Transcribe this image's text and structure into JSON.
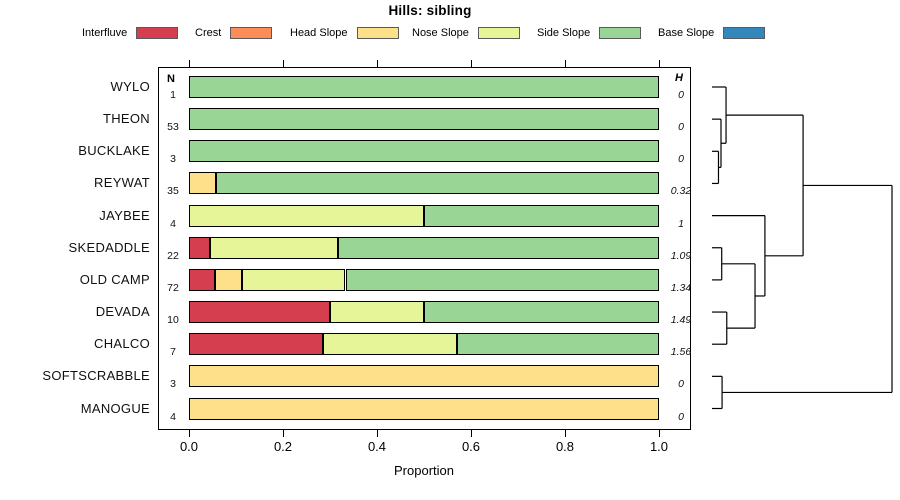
{
  "title": "Hills: sibling",
  "legend": {
    "items": [
      {
        "label": "Interfluve",
        "color": "#D53E4F"
      },
      {
        "label": "Crest",
        "color": "#FC8D59"
      },
      {
        "label": "Head Slope",
        "color": "#FEE08B"
      },
      {
        "label": "Nose Slope",
        "color": "#E6F598"
      },
      {
        "label": "Side Slope",
        "color": "#99D594"
      },
      {
        "label": "Base Slope",
        "color": "#3288BD"
      }
    ]
  },
  "columns": {
    "n_header": "N",
    "h_header": "H"
  },
  "chart_data": {
    "type": "bar",
    "stacked": true,
    "orientation": "horizontal",
    "title": "Hills: sibling",
    "xlabel": "Proportion",
    "xlim": [
      0,
      1
    ],
    "xticks": [
      "0.0",
      "0.2",
      "0.4",
      "0.6",
      "0.8",
      "1.0"
    ],
    "legend_position": "top",
    "classes": {
      "Interfluve": "#D53E4F",
      "Crest": "#FC8D59",
      "Head Slope": "#FEE08B",
      "Nose Slope": "#E6F598",
      "Side Slope": "#99D594",
      "Base Slope": "#3288BD"
    },
    "rows": [
      {
        "label": "WYLO",
        "n": "1",
        "h": "0",
        "segments": [
          {
            "class": "Side Slope",
            "value": 1.0
          }
        ]
      },
      {
        "label": "THEON",
        "n": "53",
        "h": "0",
        "segments": [
          {
            "class": "Side Slope",
            "value": 1.0
          }
        ]
      },
      {
        "label": "BUCKLAKE",
        "n": "3",
        "h": "0",
        "segments": [
          {
            "class": "Side Slope",
            "value": 1.0
          }
        ]
      },
      {
        "label": "REYWAT",
        "n": "35",
        "h": "0.32",
        "segments": [
          {
            "class": "Head Slope",
            "value": 0.057
          },
          {
            "class": "Side Slope",
            "value": 0.943
          }
        ]
      },
      {
        "label": "JAYBEE",
        "n": "4",
        "h": "1",
        "segments": [
          {
            "class": "Nose Slope",
            "value": 0.5
          },
          {
            "class": "Side Slope",
            "value": 0.5
          }
        ]
      },
      {
        "label": "SKEDADDLE",
        "n": "22",
        "h": "1.09",
        "segments": [
          {
            "class": "Interfluve",
            "value": 0.045
          },
          {
            "class": "Nose Slope",
            "value": 0.273
          },
          {
            "class": "Side Slope",
            "value": 0.682
          }
        ]
      },
      {
        "label": "OLD CAMP",
        "n": "72",
        "h": "1.34",
        "segments": [
          {
            "class": "Interfluve",
            "value": 0.056
          },
          {
            "class": "Head Slope",
            "value": 0.056
          },
          {
            "class": "Nose Slope",
            "value": 0.221
          },
          {
            "class": "Side Slope",
            "value": 0.667
          }
        ]
      },
      {
        "label": "DEVADA",
        "n": "10",
        "h": "1.49",
        "segments": [
          {
            "class": "Interfluve",
            "value": 0.3
          },
          {
            "class": "Nose Slope",
            "value": 0.2
          },
          {
            "class": "Side Slope",
            "value": 0.5
          }
        ]
      },
      {
        "label": "CHALCO",
        "n": "7",
        "h": "1.56",
        "segments": [
          {
            "class": "Interfluve",
            "value": 0.286
          },
          {
            "class": "Nose Slope",
            "value": 0.285
          },
          {
            "class": "Side Slope",
            "value": 0.429
          }
        ]
      },
      {
        "label": "SOFTSCRABBLE",
        "n": "3",
        "h": "0",
        "segments": [
          {
            "class": "Head Slope",
            "value": 1.0
          }
        ]
      },
      {
        "label": "MANOGUE",
        "n": "4",
        "h": "0",
        "segments": [
          {
            "class": "Head Slope",
            "value": 1.0
          }
        ]
      }
    ],
    "dendrogram": {
      "merges": [
        {
          "id": "m1",
          "children": [
            "BUCKLAKE",
            "REYWAT"
          ],
          "height": 0.036
        },
        {
          "id": "m2",
          "children": [
            "THEON",
            "m1"
          ],
          "height": 0.05
        },
        {
          "id": "m3",
          "children": [
            "WYLO",
            "m2"
          ],
          "height": 0.078
        },
        {
          "id": "m4",
          "children": [
            "SKEDADDLE",
            "OLD CAMP"
          ],
          "height": 0.054
        },
        {
          "id": "m5",
          "children": [
            "DEVADA",
            "CHALCO"
          ],
          "height": 0.082
        },
        {
          "id": "m6",
          "children": [
            "m4",
            "m5"
          ],
          "height": 0.239
        },
        {
          "id": "m7",
          "children": [
            "JAYBEE",
            "m6"
          ],
          "height": 0.294
        },
        {
          "id": "m8",
          "children": [
            "m3",
            "m7"
          ],
          "height": 0.506
        },
        {
          "id": "m9",
          "children": [
            "SOFTSCRABBLE",
            "MANOGUE"
          ],
          "height": 0.056
        },
        {
          "id": "m10",
          "children": [
            "m8",
            "m9"
          ],
          "height": 1.0
        }
      ]
    }
  }
}
